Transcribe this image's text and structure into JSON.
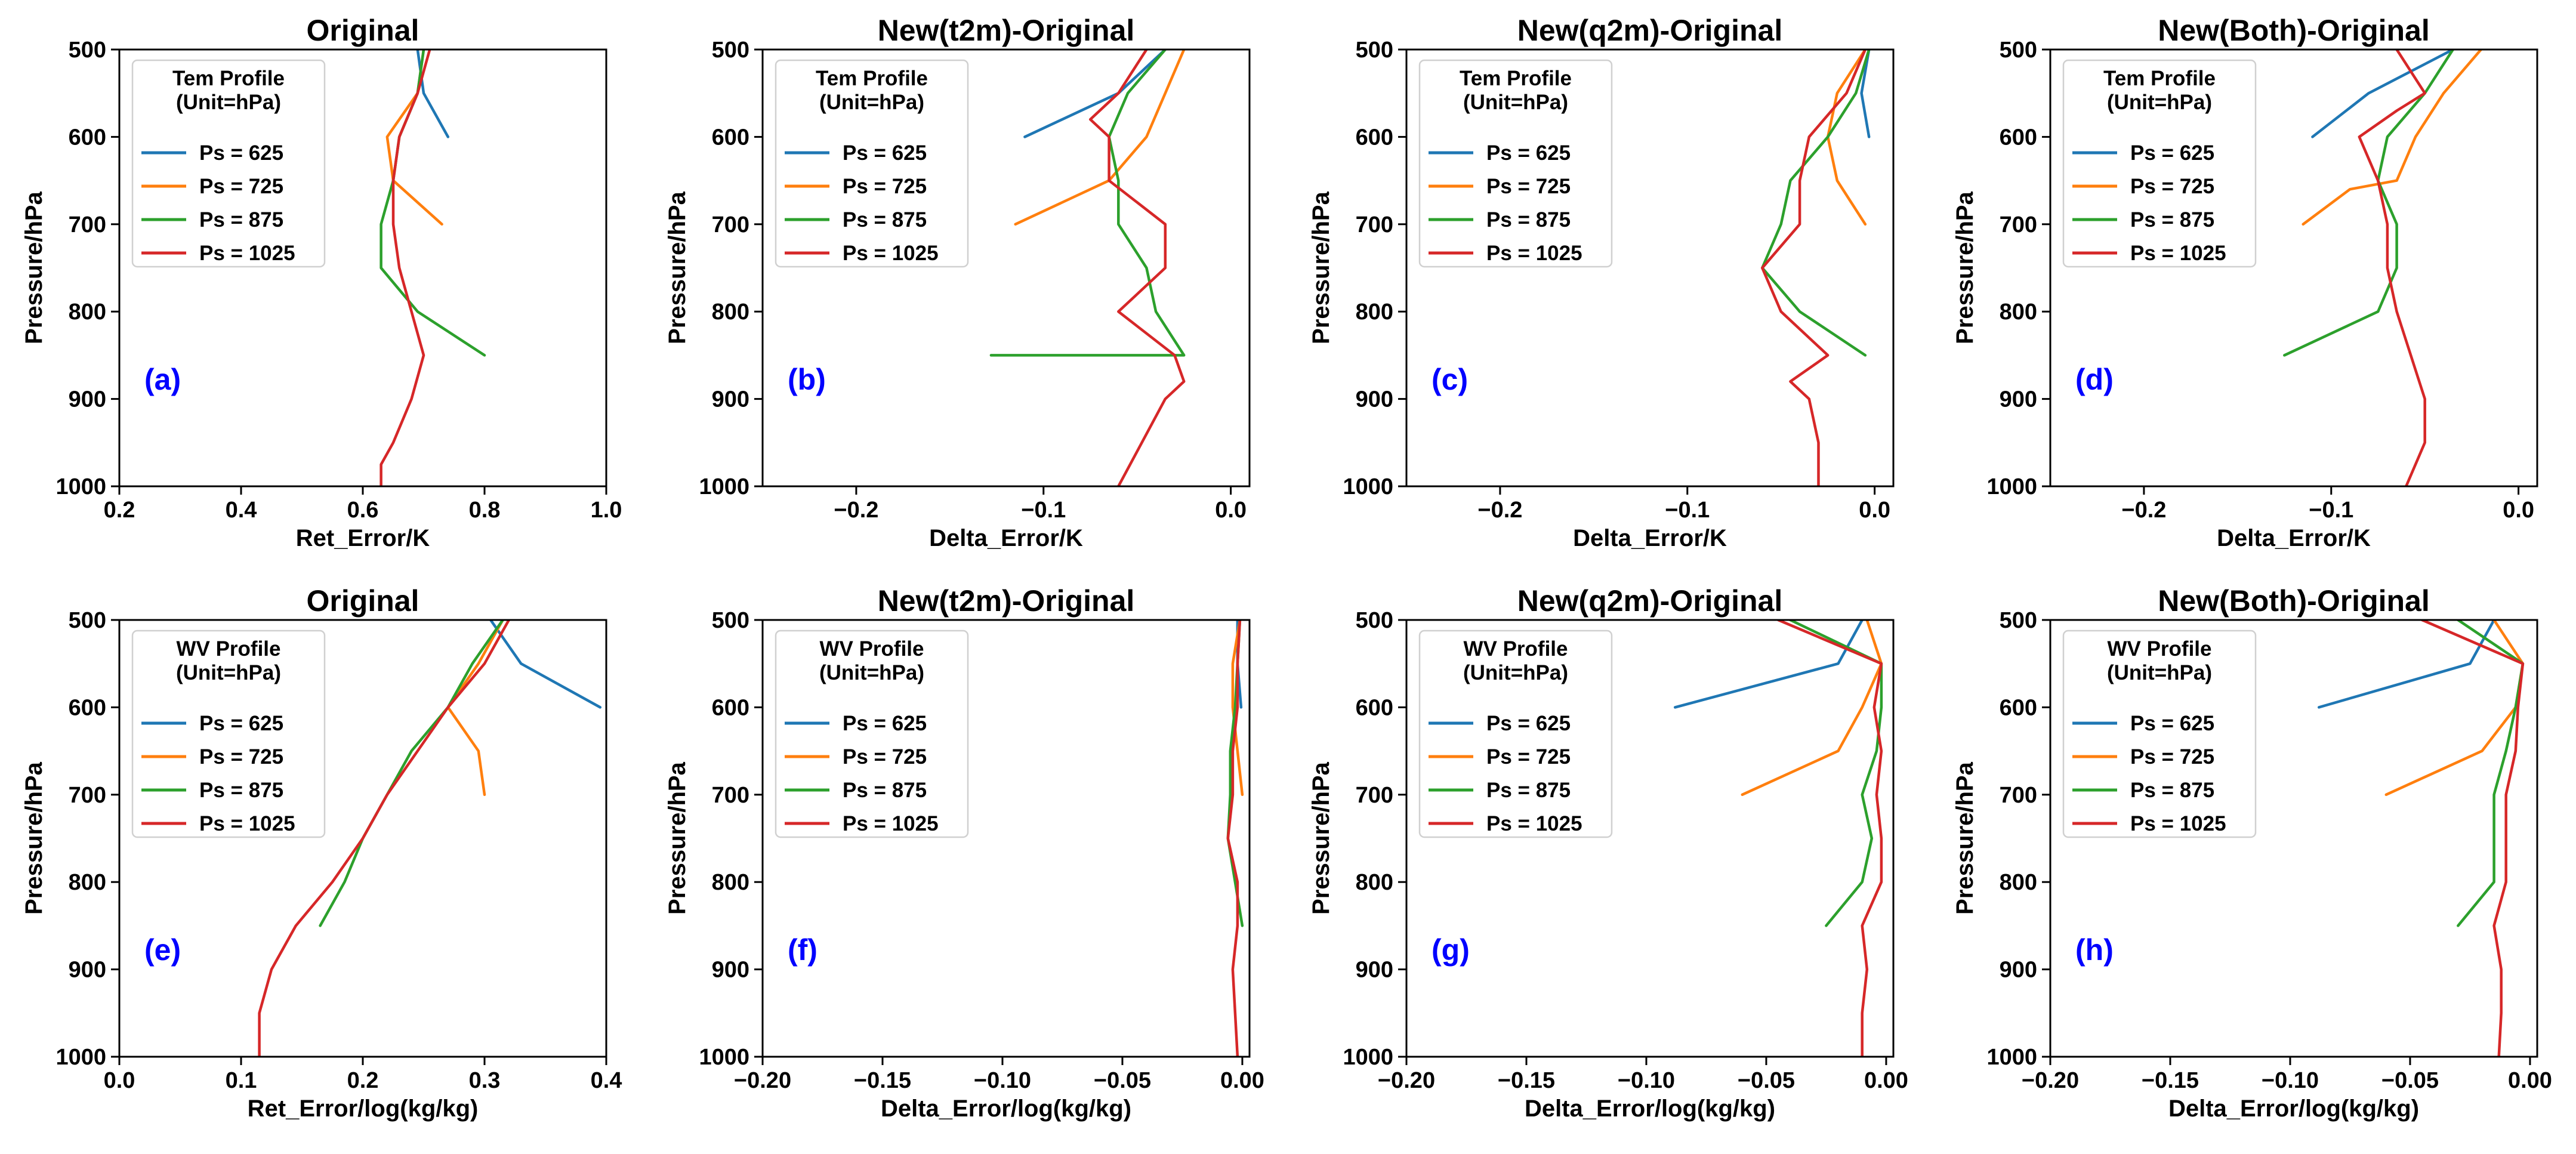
{
  "chart_data": [
    {
      "type": "line",
      "title": "Original",
      "xlabel": "Ret_Error/K",
      "ylabel": "Pressure/hPa",
      "xlim": [
        0.2,
        1.0
      ],
      "ylim": [
        1000,
        500
      ],
      "xticks": [
        0.2,
        0.4,
        0.6,
        0.8,
        1.0
      ],
      "xtick_labels": [
        "0.2",
        "0.4",
        "0.6",
        "0.8",
        "1.0"
      ],
      "yticks": [
        500,
        600,
        700,
        800,
        900,
        1000
      ],
      "ytick_labels": [
        "500",
        "600",
        "700",
        "800",
        "900",
        "1000"
      ],
      "legend_title": "Tem Profile\n(Unit=hPa)",
      "legend_loc": "upper left",
      "panel_label": "(a)",
      "series": [
        {
          "name": "Ps = 625",
          "color": "#1f77b4",
          "x": [
            0.69,
            0.7,
            0.74
          ],
          "y": [
            500,
            550,
            600
          ]
        },
        {
          "name": "Ps = 725",
          "color": "#ff7f0e",
          "x": [
            0.7,
            0.69,
            0.64,
            0.65,
            0.73
          ],
          "y": [
            500,
            550,
            600,
            650,
            700
          ]
        },
        {
          "name": "Ps = 875",
          "color": "#2ca02c",
          "x": [
            0.7,
            0.69,
            0.66,
            0.65,
            0.63,
            0.63,
            0.69,
            0.8
          ],
          "y": [
            500,
            550,
            600,
            650,
            700,
            750,
            800,
            850
          ]
        },
        {
          "name": "Ps = 1025",
          "color": "#d62728",
          "x": [
            0.71,
            0.69,
            0.66,
            0.65,
            0.65,
            0.66,
            0.68,
            0.7,
            0.68,
            0.65,
            0.63,
            0.63
          ],
          "y": [
            500,
            550,
            600,
            650,
            700,
            750,
            800,
            850,
            900,
            950,
            975,
            1000
          ]
        }
      ]
    },
    {
      "type": "line",
      "title": "New(t2m)-Original",
      "xlabel": "Delta_Error/K",
      "ylabel": "Pressure/hPa",
      "xlim": [
        -0.25,
        0.01
      ],
      "ylim": [
        1000,
        500
      ],
      "xticks": [
        -0.2,
        -0.1,
        0.0
      ],
      "xtick_labels": [
        "−0.2",
        "−0.1",
        "0.0"
      ],
      "yticks": [
        500,
        600,
        700,
        800,
        900,
        1000
      ],
      "ytick_labels": [
        "500",
        "600",
        "700",
        "800",
        "900",
        "1000"
      ],
      "legend_title": "Tem Profile\n(Unit=hPa)",
      "legend_loc": "upper left",
      "panel_label": "(b)",
      "series": [
        {
          "name": "Ps = 625",
          "color": "#1f77b4",
          "x": [
            -0.035,
            -0.06,
            -0.11
          ],
          "y": [
            500,
            550,
            600
          ]
        },
        {
          "name": "Ps = 725",
          "color": "#ff7f0e",
          "x": [
            -0.025,
            -0.035,
            -0.045,
            -0.065,
            -0.115
          ],
          "y": [
            500,
            550,
            600,
            650,
            700
          ]
        },
        {
          "name": "Ps = 875",
          "color": "#2ca02c",
          "x": [
            -0.035,
            -0.055,
            -0.065,
            -0.06,
            -0.06,
            -0.045,
            -0.04,
            -0.025,
            -0.128
          ],
          "y": [
            500,
            550,
            600,
            650,
            700,
            750,
            800,
            850,
            850
          ]
        },
        {
          "name": "Ps = 1025",
          "color": "#d62728",
          "x": [
            -0.045,
            -0.06,
            -0.075,
            -0.065,
            -0.065,
            -0.035,
            -0.035,
            -0.06,
            -0.03,
            -0.025,
            -0.035,
            -0.06
          ],
          "y": [
            500,
            550,
            580,
            600,
            650,
            700,
            750,
            800,
            850,
            880,
            900,
            1000
          ]
        }
      ]
    },
    {
      "type": "line",
      "title": "New(q2m)-Original",
      "xlabel": "Delta_Error/K",
      "ylabel": "Pressure/hPa",
      "xlim": [
        -0.25,
        0.01
      ],
      "ylim": [
        1000,
        500
      ],
      "xticks": [
        -0.2,
        -0.1,
        0.0
      ],
      "xtick_labels": [
        "−0.2",
        "−0.1",
        "0.0"
      ],
      "yticks": [
        500,
        600,
        700,
        800,
        900,
        1000
      ],
      "ytick_labels": [
        "500",
        "600",
        "700",
        "800",
        "900",
        "1000"
      ],
      "legend_title": "Tem Profile\n(Unit=hPa)",
      "legend_loc": "upper left",
      "panel_label": "(c)",
      "series": [
        {
          "name": "Ps = 625",
          "color": "#1f77b4",
          "x": [
            -0.003,
            -0.007,
            -0.003
          ],
          "y": [
            500,
            550,
            600
          ]
        },
        {
          "name": "Ps = 725",
          "color": "#ff7f0e",
          "x": [
            -0.005,
            -0.02,
            -0.025,
            -0.02,
            -0.005
          ],
          "y": [
            500,
            550,
            600,
            650,
            700
          ]
        },
        {
          "name": "Ps = 875",
          "color": "#2ca02c",
          "x": [
            -0.003,
            -0.01,
            -0.025,
            -0.045,
            -0.05,
            -0.06,
            -0.04,
            -0.005
          ],
          "y": [
            500,
            550,
            600,
            650,
            700,
            750,
            800,
            850
          ]
        },
        {
          "name": "Ps = 1025",
          "color": "#d62728",
          "x": [
            -0.005,
            -0.015,
            -0.035,
            -0.04,
            -0.04,
            -0.06,
            -0.05,
            -0.025,
            -0.045,
            -0.035,
            -0.03,
            -0.03
          ],
          "y": [
            500,
            550,
            600,
            650,
            700,
            750,
            800,
            850,
            880,
            900,
            950,
            1000
          ]
        }
      ]
    },
    {
      "type": "line",
      "title": "New(Both)-Original",
      "xlabel": "Delta_Error/K",
      "ylabel": "Pressure/hPa",
      "xlim": [
        -0.25,
        0.01
      ],
      "ylim": [
        1000,
        500
      ],
      "xticks": [
        -0.2,
        -0.1,
        0.0
      ],
      "xtick_labels": [
        "−0.2",
        "−0.1",
        "0.0"
      ],
      "yticks": [
        500,
        600,
        700,
        800,
        900,
        1000
      ],
      "ytick_labels": [
        "500",
        "600",
        "700",
        "800",
        "900",
        "1000"
      ],
      "legend_title": "Tem Profile\n(Unit=hPa)",
      "legend_loc": "upper left",
      "panel_label": "(d)",
      "series": [
        {
          "name": "Ps = 625",
          "color": "#1f77b4",
          "x": [
            -0.035,
            -0.08,
            -0.11
          ],
          "y": [
            500,
            550,
            600
          ]
        },
        {
          "name": "Ps = 725",
          "color": "#ff7f0e",
          "x": [
            -0.02,
            -0.04,
            -0.055,
            -0.065,
            -0.09,
            -0.115
          ],
          "y": [
            500,
            550,
            600,
            650,
            660,
            700
          ]
        },
        {
          "name": "Ps = 875",
          "color": "#2ca02c",
          "x": [
            -0.035,
            -0.05,
            -0.07,
            -0.075,
            -0.065,
            -0.065,
            -0.075,
            -0.125
          ],
          "y": [
            500,
            550,
            600,
            650,
            700,
            750,
            800,
            850
          ]
        },
        {
          "name": "Ps = 1025",
          "color": "#d62728",
          "x": [
            -0.065,
            -0.05,
            -0.065,
            -0.085,
            -0.075,
            -0.07,
            -0.07,
            -0.065,
            -0.05,
            -0.05,
            -0.06
          ],
          "y": [
            500,
            550,
            570,
            600,
            650,
            700,
            750,
            800,
            900,
            950,
            1000
          ]
        }
      ]
    },
    {
      "type": "line",
      "title": "Original",
      "xlabel": "Ret_Error/log(kg/kg)",
      "ylabel": "Pressure/hPa",
      "xlim": [
        0.0,
        0.4
      ],
      "ylim": [
        1000,
        500
      ],
      "xticks": [
        0.0,
        0.1,
        0.2,
        0.3,
        0.4
      ],
      "xtick_labels": [
        "0.0",
        "0.1",
        "0.2",
        "0.3",
        "0.4"
      ],
      "yticks": [
        500,
        600,
        700,
        800,
        900,
        1000
      ],
      "ytick_labels": [
        "500",
        "600",
        "700",
        "800",
        "900",
        "1000"
      ],
      "legend_title": "WV Profile\n(Unit=hPa)",
      "legend_loc": "upper left",
      "panel_label": "(e)",
      "series": [
        {
          "name": "Ps = 625",
          "color": "#1f77b4",
          "x": [
            0.305,
            0.33,
            0.395
          ],
          "y": [
            500,
            550,
            600
          ]
        },
        {
          "name": "Ps = 725",
          "color": "#ff7f0e",
          "x": [
            0.315,
            0.295,
            0.27,
            0.295,
            0.3
          ],
          "y": [
            500,
            550,
            600,
            650,
            700
          ]
        },
        {
          "name": "Ps = 875",
          "color": "#2ca02c",
          "x": [
            0.315,
            0.29,
            0.27,
            0.24,
            0.22,
            0.2,
            0.185,
            0.165
          ],
          "y": [
            500,
            550,
            600,
            650,
            700,
            750,
            800,
            850
          ]
        },
        {
          "name": "Ps = 1025",
          "color": "#d62728",
          "x": [
            0.32,
            0.3,
            0.27,
            0.245,
            0.22,
            0.2,
            0.175,
            0.145,
            0.125,
            0.115,
            0.115
          ],
          "y": [
            500,
            550,
            600,
            650,
            700,
            750,
            800,
            850,
            900,
            950,
            1000
          ]
        }
      ]
    },
    {
      "type": "line",
      "title": "New(t2m)-Original",
      "xlabel": "Delta_Error/log(kg/kg)",
      "ylabel": "Pressure/hPa",
      "xlim": [
        -0.2,
        0.003
      ],
      "ylim": [
        1000,
        500
      ],
      "xticks": [
        -0.2,
        -0.15,
        -0.1,
        -0.05,
        0.0
      ],
      "xtick_labels": [
        "−0.20",
        "−0.15",
        "−0.10",
        "−0.05",
        "0.00"
      ],
      "yticks": [
        500,
        600,
        700,
        800,
        900,
        1000
      ],
      "ytick_labels": [
        "500",
        "600",
        "700",
        "800",
        "900",
        "1000"
      ],
      "legend_title": "WV Profile\n(Unit=hPa)",
      "legend_loc": "upper left",
      "panel_label": "(f)",
      "series": [
        {
          "name": "Ps = 625",
          "color": "#1f77b4",
          "x": [
            -0.002,
            -0.002,
            -0.0005
          ],
          "y": [
            500,
            550,
            600
          ]
        },
        {
          "name": "Ps = 725",
          "color": "#ff7f0e",
          "x": [
            -0.001,
            -0.004,
            -0.004,
            -0.002,
            0.0
          ],
          "y": [
            500,
            550,
            600,
            650,
            700
          ]
        },
        {
          "name": "Ps = 875",
          "color": "#2ca02c",
          "x": [
            -0.001,
            -0.002,
            -0.003,
            -0.005,
            -0.005,
            -0.006,
            -0.003,
            0.0
          ],
          "y": [
            500,
            550,
            600,
            650,
            700,
            750,
            800,
            850
          ]
        },
        {
          "name": "Ps = 1025",
          "color": "#d62728",
          "x": [
            -0.001,
            -0.002,
            -0.002,
            -0.004,
            -0.004,
            -0.006,
            -0.002,
            -0.002,
            -0.004,
            -0.003,
            -0.002
          ],
          "y": [
            500,
            550,
            600,
            650,
            700,
            750,
            800,
            850,
            900,
            950,
            1000
          ]
        }
      ]
    },
    {
      "type": "line",
      "title": "New(q2m)-Original",
      "xlabel": "Delta_Error/log(kg/kg)",
      "ylabel": "Pressure/hPa",
      "xlim": [
        -0.2,
        0.003
      ],
      "ylim": [
        1000,
        500
      ],
      "xticks": [
        -0.2,
        -0.15,
        -0.1,
        -0.05,
        0.0
      ],
      "xtick_labels": [
        "−0.20",
        "−0.15",
        "−0.10",
        "−0.05",
        "0.00"
      ],
      "yticks": [
        500,
        600,
        700,
        800,
        900,
        1000
      ],
      "ytick_labels": [
        "500",
        "600",
        "700",
        "800",
        "900",
        "1000"
      ],
      "legend_title": "WV Profile\n(Unit=hPa)",
      "legend_loc": "upper left",
      "panel_label": "(g)",
      "series": [
        {
          "name": "Ps = 625",
          "color": "#1f77b4",
          "x": [
            -0.01,
            -0.02,
            -0.088
          ],
          "y": [
            500,
            550,
            600
          ]
        },
        {
          "name": "Ps = 725",
          "color": "#ff7f0e",
          "x": [
            -0.008,
            -0.002,
            -0.01,
            -0.02,
            -0.06
          ],
          "y": [
            500,
            550,
            600,
            650,
            700
          ]
        },
        {
          "name": "Ps = 875",
          "color": "#2ca02c",
          "x": [
            -0.04,
            -0.002,
            -0.002,
            -0.004,
            -0.01,
            -0.006,
            -0.01,
            -0.025
          ],
          "y": [
            500,
            550,
            600,
            650,
            700,
            750,
            800,
            850
          ]
        },
        {
          "name": "Ps = 1025",
          "color": "#d62728",
          "x": [
            -0.045,
            -0.002,
            -0.005,
            -0.002,
            -0.004,
            -0.002,
            -0.002,
            -0.01,
            -0.008,
            -0.01,
            -0.01
          ],
          "y": [
            500,
            550,
            600,
            650,
            700,
            750,
            800,
            850,
            900,
            950,
            1000
          ]
        }
      ]
    },
    {
      "type": "line",
      "title": "New(Both)-Original",
      "xlabel": "Delta_Error/log(kg/kg)",
      "ylabel": "Pressure/hPa",
      "xlim": [
        -0.2,
        0.003
      ],
      "ylim": [
        1000,
        500
      ],
      "xticks": [
        -0.2,
        -0.15,
        -0.1,
        -0.05,
        0.0
      ],
      "xtick_labels": [
        "−0.20",
        "−0.15",
        "−0.10",
        "−0.05",
        "0.00"
      ],
      "yticks": [
        500,
        600,
        700,
        800,
        900,
        1000
      ],
      "ytick_labels": [
        "500",
        "600",
        "700",
        "800",
        "900",
        "1000"
      ],
      "legend_title": "WV Profile\n(Unit=hPa)",
      "legend_loc": "upper left",
      "panel_label": "(h)",
      "series": [
        {
          "name": "Ps = 625",
          "color": "#1f77b4",
          "x": [
            -0.015,
            -0.025,
            -0.088
          ],
          "y": [
            500,
            550,
            600
          ]
        },
        {
          "name": "Ps = 725",
          "color": "#ff7f0e",
          "x": [
            -0.015,
            -0.003,
            -0.006,
            -0.02,
            -0.06
          ],
          "y": [
            500,
            550,
            600,
            650,
            700
          ]
        },
        {
          "name": "Ps = 875",
          "color": "#2ca02c",
          "x": [
            -0.03,
            -0.003,
            -0.006,
            -0.01,
            -0.015,
            -0.015,
            -0.015,
            -0.03
          ],
          "y": [
            500,
            550,
            600,
            650,
            700,
            750,
            800,
            850
          ]
        },
        {
          "name": "Ps = 1025",
          "color": "#d62728",
          "x": [
            -0.045,
            -0.003,
            -0.005,
            -0.006,
            -0.01,
            -0.01,
            -0.01,
            -0.015,
            -0.012,
            -0.012,
            -0.013
          ],
          "y": [
            500,
            550,
            600,
            650,
            700,
            750,
            800,
            850,
            900,
            950,
            1000
          ]
        }
      ]
    }
  ]
}
